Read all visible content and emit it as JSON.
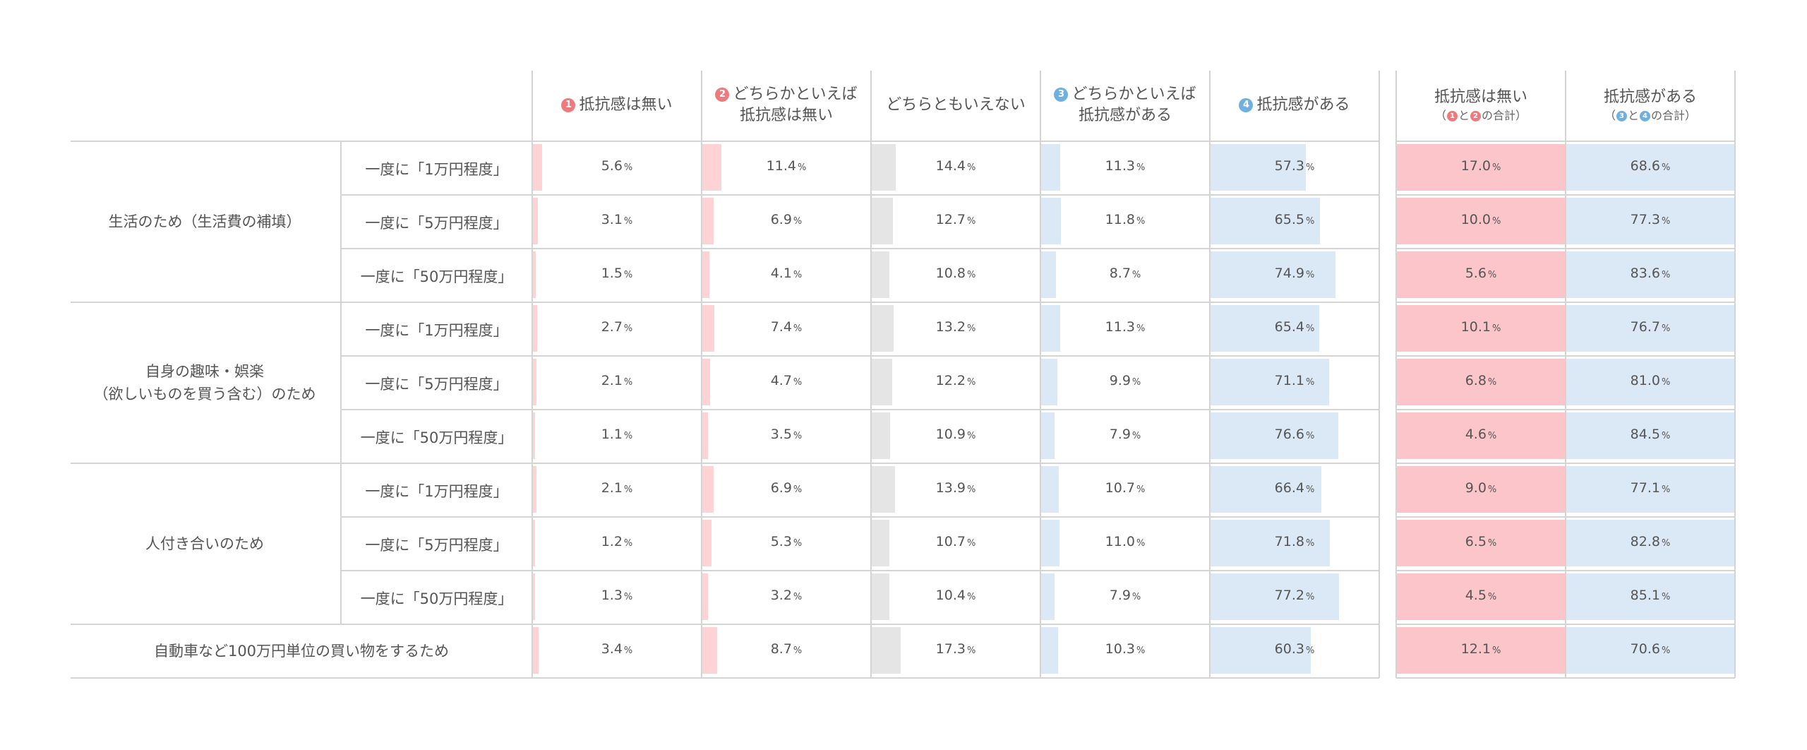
{
  "colors": {
    "c1": "#fdd3d6",
    "c2": "#fdd3d6",
    "c3": "#e5e5e5",
    "c4": "#dbe8f5",
    "c5": "#dbe8f5",
    "sum_red": "#fbc5ca",
    "sum_blue": "#dbe8f5"
  },
  "headers": {
    "c1": {
      "marker": "1",
      "text": "抵抗感は無い"
    },
    "c2": {
      "marker": "2",
      "line1": "どちらかといえば",
      "line2": "抵抗感は無い"
    },
    "c3": {
      "text": "どちらともいえない"
    },
    "c4": {
      "marker": "3",
      "line1": "どちらかといえば",
      "line2": "抵抗感がある"
    },
    "c5": {
      "marker": "4",
      "text": "抵抗感がある"
    },
    "s1": {
      "title": "抵抗感は無い",
      "sub_open": "（",
      "m1": "1",
      "and": "と",
      "m2": "2",
      "sub_close": "の合計）"
    },
    "s2": {
      "title": "抵抗感がある",
      "sub_open": "（",
      "m1": "3",
      "and": "と",
      "m2": "4",
      "sub_close": "の合計）"
    }
  },
  "unit": "%",
  "groups": [
    {
      "label": "生活のため（生活費の補填）"
    },
    {
      "label": "自身の趣味・娯楽",
      "label2": "（欲しいものを買う含む）のため"
    },
    {
      "label": "人付き合いのため"
    },
    {
      "label": "自動車など100万円単位の買い物をするため"
    }
  ],
  "chart_data": {
    "type": "table",
    "columns": [
      "抵抗感は無い",
      "どちらかといえば抵抗感は無い",
      "どちらともいえない",
      "どちらかといえば抵抗感がある",
      "抵抗感がある",
      "抵抗感は無い（1と2の合計）",
      "抵抗感がある（3と4の合計）"
    ],
    "rows": [
      {
        "group": "生活のため（生活費の補填）",
        "label": "一度に「1万円程度」",
        "values": [
          5.6,
          11.4,
          14.4,
          11.3,
          57.3
        ],
        "sums": [
          17.0,
          68.6
        ]
      },
      {
        "group": "生活のため（生活費の補填）",
        "label": "一度に「5万円程度」",
        "values": [
          3.1,
          6.9,
          12.7,
          11.8,
          65.5
        ],
        "sums": [
          10.0,
          77.3
        ]
      },
      {
        "group": "生活のため（生活費の補填）",
        "label": "一度に「50万円程度」",
        "values": [
          1.5,
          4.1,
          10.8,
          8.7,
          74.9
        ],
        "sums": [
          5.6,
          83.6
        ]
      },
      {
        "group": "自身の趣味・娯楽（欲しいものを買う含む）のため",
        "label": "一度に「1万円程度」",
        "values": [
          2.7,
          7.4,
          13.2,
          11.3,
          65.4
        ],
        "sums": [
          10.1,
          76.7
        ]
      },
      {
        "group": "自身の趣味・娯楽（欲しいものを買う含む）のため",
        "label": "一度に「5万円程度」",
        "values": [
          2.1,
          4.7,
          12.2,
          9.9,
          71.1
        ],
        "sums": [
          6.8,
          81.0
        ]
      },
      {
        "group": "自身の趣味・娯楽（欲しいものを買う含む）のため",
        "label": "一度に「50万円程度」",
        "values": [
          1.1,
          3.5,
          10.9,
          7.9,
          76.6
        ],
        "sums": [
          4.6,
          84.5
        ]
      },
      {
        "group": "人付き合いのため",
        "label": "一度に「1万円程度」",
        "values": [
          2.1,
          6.9,
          13.9,
          10.7,
          66.4
        ],
        "sums": [
          9.0,
          77.1
        ]
      },
      {
        "group": "人付き合いのため",
        "label": "一度に「5万円程度」",
        "values": [
          1.2,
          5.3,
          10.7,
          11.0,
          71.8
        ],
        "sums": [
          6.5,
          82.8
        ]
      },
      {
        "group": "人付き合いのため",
        "label": "一度に「50万円程度」",
        "values": [
          1.3,
          3.2,
          10.4,
          7.9,
          77.2
        ],
        "sums": [
          4.5,
          85.1
        ]
      },
      {
        "group": "自動車など100万円単位の買い物をするため",
        "label": "",
        "values": [
          3.4,
          8.7,
          17.3,
          10.3,
          60.3
        ],
        "sums": [
          12.1,
          70.6
        ]
      }
    ]
  }
}
